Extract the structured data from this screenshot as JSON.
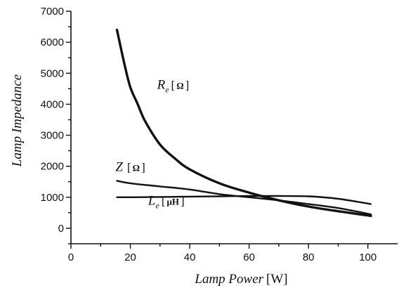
{
  "chart_data": {
    "type": "line",
    "title": "",
    "xlabel": "Lamp Power",
    "xlabel_unit": "[W]",
    "ylabel": "Lamp Impedance",
    "xlim": [
      0,
      110
    ],
    "ylim": [
      -500,
      7000
    ],
    "x_ticks": [
      0,
      20,
      40,
      60,
      80,
      100
    ],
    "y_ticks": [
      0,
      1000,
      2000,
      3000,
      4000,
      5000,
      6000,
      7000
    ],
    "grid": false,
    "legend": "none",
    "series": [
      {
        "id": "re",
        "x": [
          15.5,
          18,
          20,
          22.5,
          25,
          30,
          35,
          40,
          50,
          60,
          70,
          80,
          90,
          101
        ],
        "values": [
          6400,
          5300,
          4550,
          4000,
          3450,
          2700,
          2250,
          1900,
          1450,
          1150,
          900,
          700,
          550,
          400
        ]
      },
      {
        "id": "z",
        "x": [
          15.5,
          20,
          30,
          40,
          50,
          60,
          70,
          80,
          90,
          101
        ],
        "values": [
          1530,
          1450,
          1350,
          1250,
          1100,
          1000,
          900,
          780,
          650,
          450
        ]
      },
      {
        "id": "le",
        "x": [
          15.5,
          20,
          30,
          40,
          50,
          60,
          70,
          80,
          90,
          101
        ],
        "values": [
          1000,
          1000,
          1010,
          1020,
          1030,
          1040,
          1040,
          1030,
          950,
          780
        ]
      }
    ],
    "annotations": [
      {
        "series": "re",
        "symbol": "R",
        "subscript": "e",
        "unit": "Ω",
        "x": 29,
        "y": 4500
      },
      {
        "series": "z",
        "symbol": "Z",
        "subscript": "",
        "unit": "Ω",
        "x": 15,
        "y": 1850
      },
      {
        "series": "le",
        "symbol": "L",
        "subscript": "e",
        "unit": "μH",
        "x": 26,
        "y": 760
      }
    ]
  }
}
